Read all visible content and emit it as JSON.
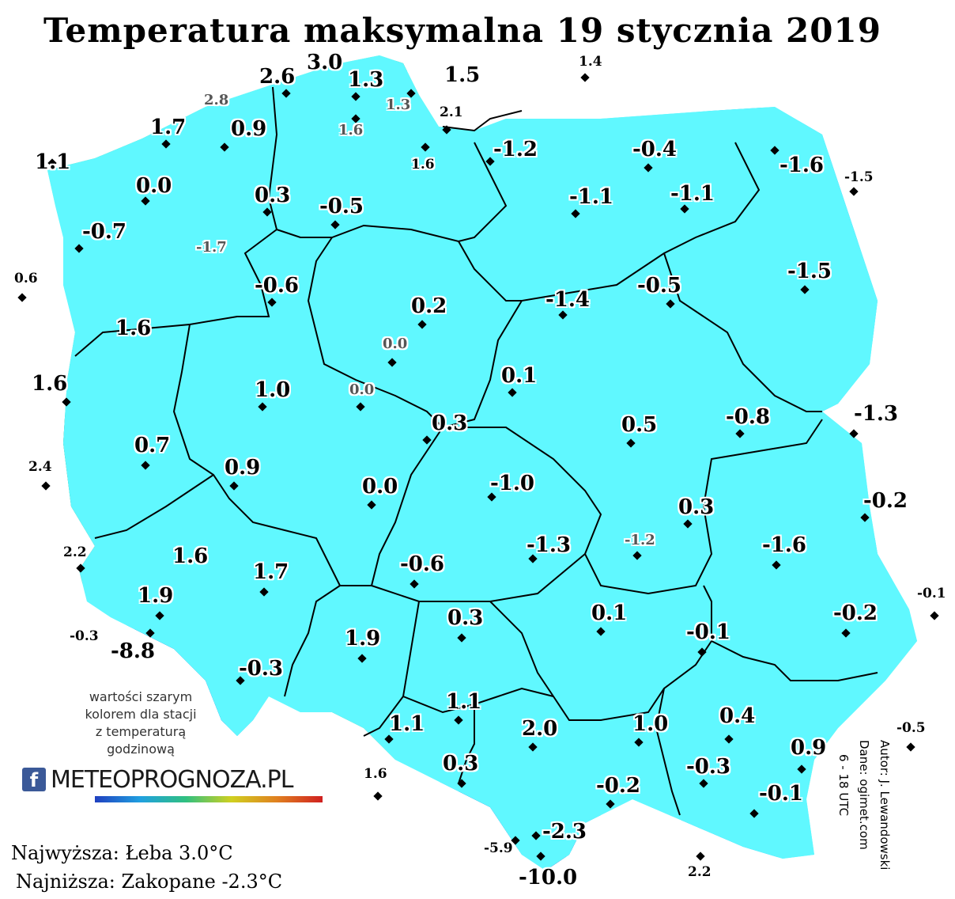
{
  "title": "Temperatura maksymalna 19 stycznia 2019",
  "legend_note": [
    "wartości szarym",
    "kolorem dla stacji",
    "z temperaturą",
    "godzinową"
  ],
  "logo": {
    "icon": "f",
    "text": "METEOPROGNOZA.PL"
  },
  "stats": {
    "highest": "Najwyższa: Łeba 3.0°C",
    "lowest": "Najniższa: Zakopane -2.3°C"
  },
  "author": [
    "Autor: J. Lewandowski",
    "Dane: ogimet.com",
    "6 - 18 UTC"
  ],
  "colors": {
    "dark_green": "#3d9a70",
    "mid_green": "#86c9a6",
    "light_green": "#c8f5c8",
    "cyan": "#60f8ff",
    "light_blue": "#49cbff",
    "blue": "#2aa8f0",
    "deep_blue": "#1030c0"
  },
  "stations": [
    {
      "v": "3.0",
      "s": "big"
    },
    {
      "v": "2.6",
      "s": "big"
    },
    {
      "v": "1.3",
      "s": "big"
    },
    {
      "v": "1.5",
      "s": "big"
    },
    {
      "v": "1.4",
      "s": "small"
    },
    {
      "v": "2.8",
      "s": "gray"
    },
    {
      "v": "1.3",
      "s": "gray"
    },
    {
      "v": "2.1",
      "s": "small"
    },
    {
      "v": "1.6",
      "s": "gray"
    },
    {
      "v": "1.7",
      "s": "big"
    },
    {
      "v": "0.9",
      "s": "big"
    },
    {
      "v": "1.6",
      "s": "small"
    },
    {
      "v": "-1.2",
      "s": "big"
    },
    {
      "v": "-0.4",
      "s": "big"
    },
    {
      "v": "1.1",
      "s": "big"
    },
    {
      "v": "-1.6",
      "s": "big"
    },
    {
      "v": "-1.5",
      "s": "small"
    },
    {
      "v": "0.0",
      "s": "big"
    },
    {
      "v": "0.3",
      "s": "big"
    },
    {
      "v": "-1.1",
      "s": "big"
    },
    {
      "v": "-1.1",
      "s": "big"
    },
    {
      "v": "-0.5",
      "s": "big"
    },
    {
      "v": "-0.7",
      "s": "big"
    },
    {
      "v": "-1.7",
      "s": "gray"
    },
    {
      "v": "0.6",
      "s": "small"
    },
    {
      "v": "-0.6",
      "s": "big"
    },
    {
      "v": "-1.5",
      "s": "big"
    },
    {
      "v": "-0.5",
      "s": "big"
    },
    {
      "v": "-1.4",
      "s": "big"
    },
    {
      "v": "0.2",
      "s": "big"
    },
    {
      "v": "1.6",
      "s": "big"
    },
    {
      "v": "0.0",
      "s": "gray"
    },
    {
      "v": "1.6",
      "s": "big"
    },
    {
      "v": "1.0",
      "s": "big"
    },
    {
      "v": "0.1",
      "s": "big"
    },
    {
      "v": "0.0",
      "s": "gray"
    },
    {
      "v": "-1.3",
      "s": "big"
    },
    {
      "v": "-0.8",
      "s": "big"
    },
    {
      "v": "0.3",
      "s": "big"
    },
    {
      "v": "0.5",
      "s": "big"
    },
    {
      "v": "0.7",
      "s": "big"
    },
    {
      "v": "2.4",
      "s": "small"
    },
    {
      "v": "0.9",
      "s": "big"
    },
    {
      "v": "-1.0",
      "s": "big"
    },
    {
      "v": "0.0",
      "s": "big"
    },
    {
      "v": "-0.2",
      "s": "big"
    },
    {
      "v": "0.3",
      "s": "big"
    },
    {
      "v": "-1.2",
      "s": "gray"
    },
    {
      "v": "-1.3",
      "s": "big"
    },
    {
      "v": "-1.6",
      "s": "big"
    },
    {
      "v": "2.2",
      "s": "small"
    },
    {
      "v": "1.6",
      "s": "big"
    },
    {
      "v": "-0.6",
      "s": "big"
    },
    {
      "v": "1.7",
      "s": "big"
    },
    {
      "v": "1.9",
      "s": "big"
    },
    {
      "v": "0.3",
      "s": "big"
    },
    {
      "v": "0.1",
      "s": "big"
    },
    {
      "v": "-0.1",
      "s": "small"
    },
    {
      "v": "-0.2",
      "s": "big"
    },
    {
      "v": "-0.3",
      "s": "small"
    },
    {
      "v": "-8.8",
      "s": "big"
    },
    {
      "v": "1.9",
      "s": "big"
    },
    {
      "v": "-0.1",
      "s": "big"
    },
    {
      "v": "-0.3",
      "s": "big"
    },
    {
      "v": "1.1",
      "s": "big"
    },
    {
      "v": "1.1",
      "s": "big"
    },
    {
      "v": "2.0",
      "s": "big"
    },
    {
      "v": "1.0",
      "s": "big"
    },
    {
      "v": "0.4",
      "s": "big"
    },
    {
      "v": "-0.5",
      "s": "small"
    },
    {
      "v": "0.9",
      "s": "big"
    },
    {
      "v": "1.6",
      "s": "small"
    },
    {
      "v": "0.3",
      "s": "big"
    },
    {
      "v": "-0.2",
      "s": "big"
    },
    {
      "v": "-0.3",
      "s": "big"
    },
    {
      "v": "-0.1",
      "s": "big"
    },
    {
      "v": "-2.3",
      "s": "big"
    },
    {
      "v": "-5.9",
      "s": "small"
    },
    {
      "v": "-10.0",
      "s": "big"
    },
    {
      "v": "2.2",
      "s": "small"
    }
  ]
}
